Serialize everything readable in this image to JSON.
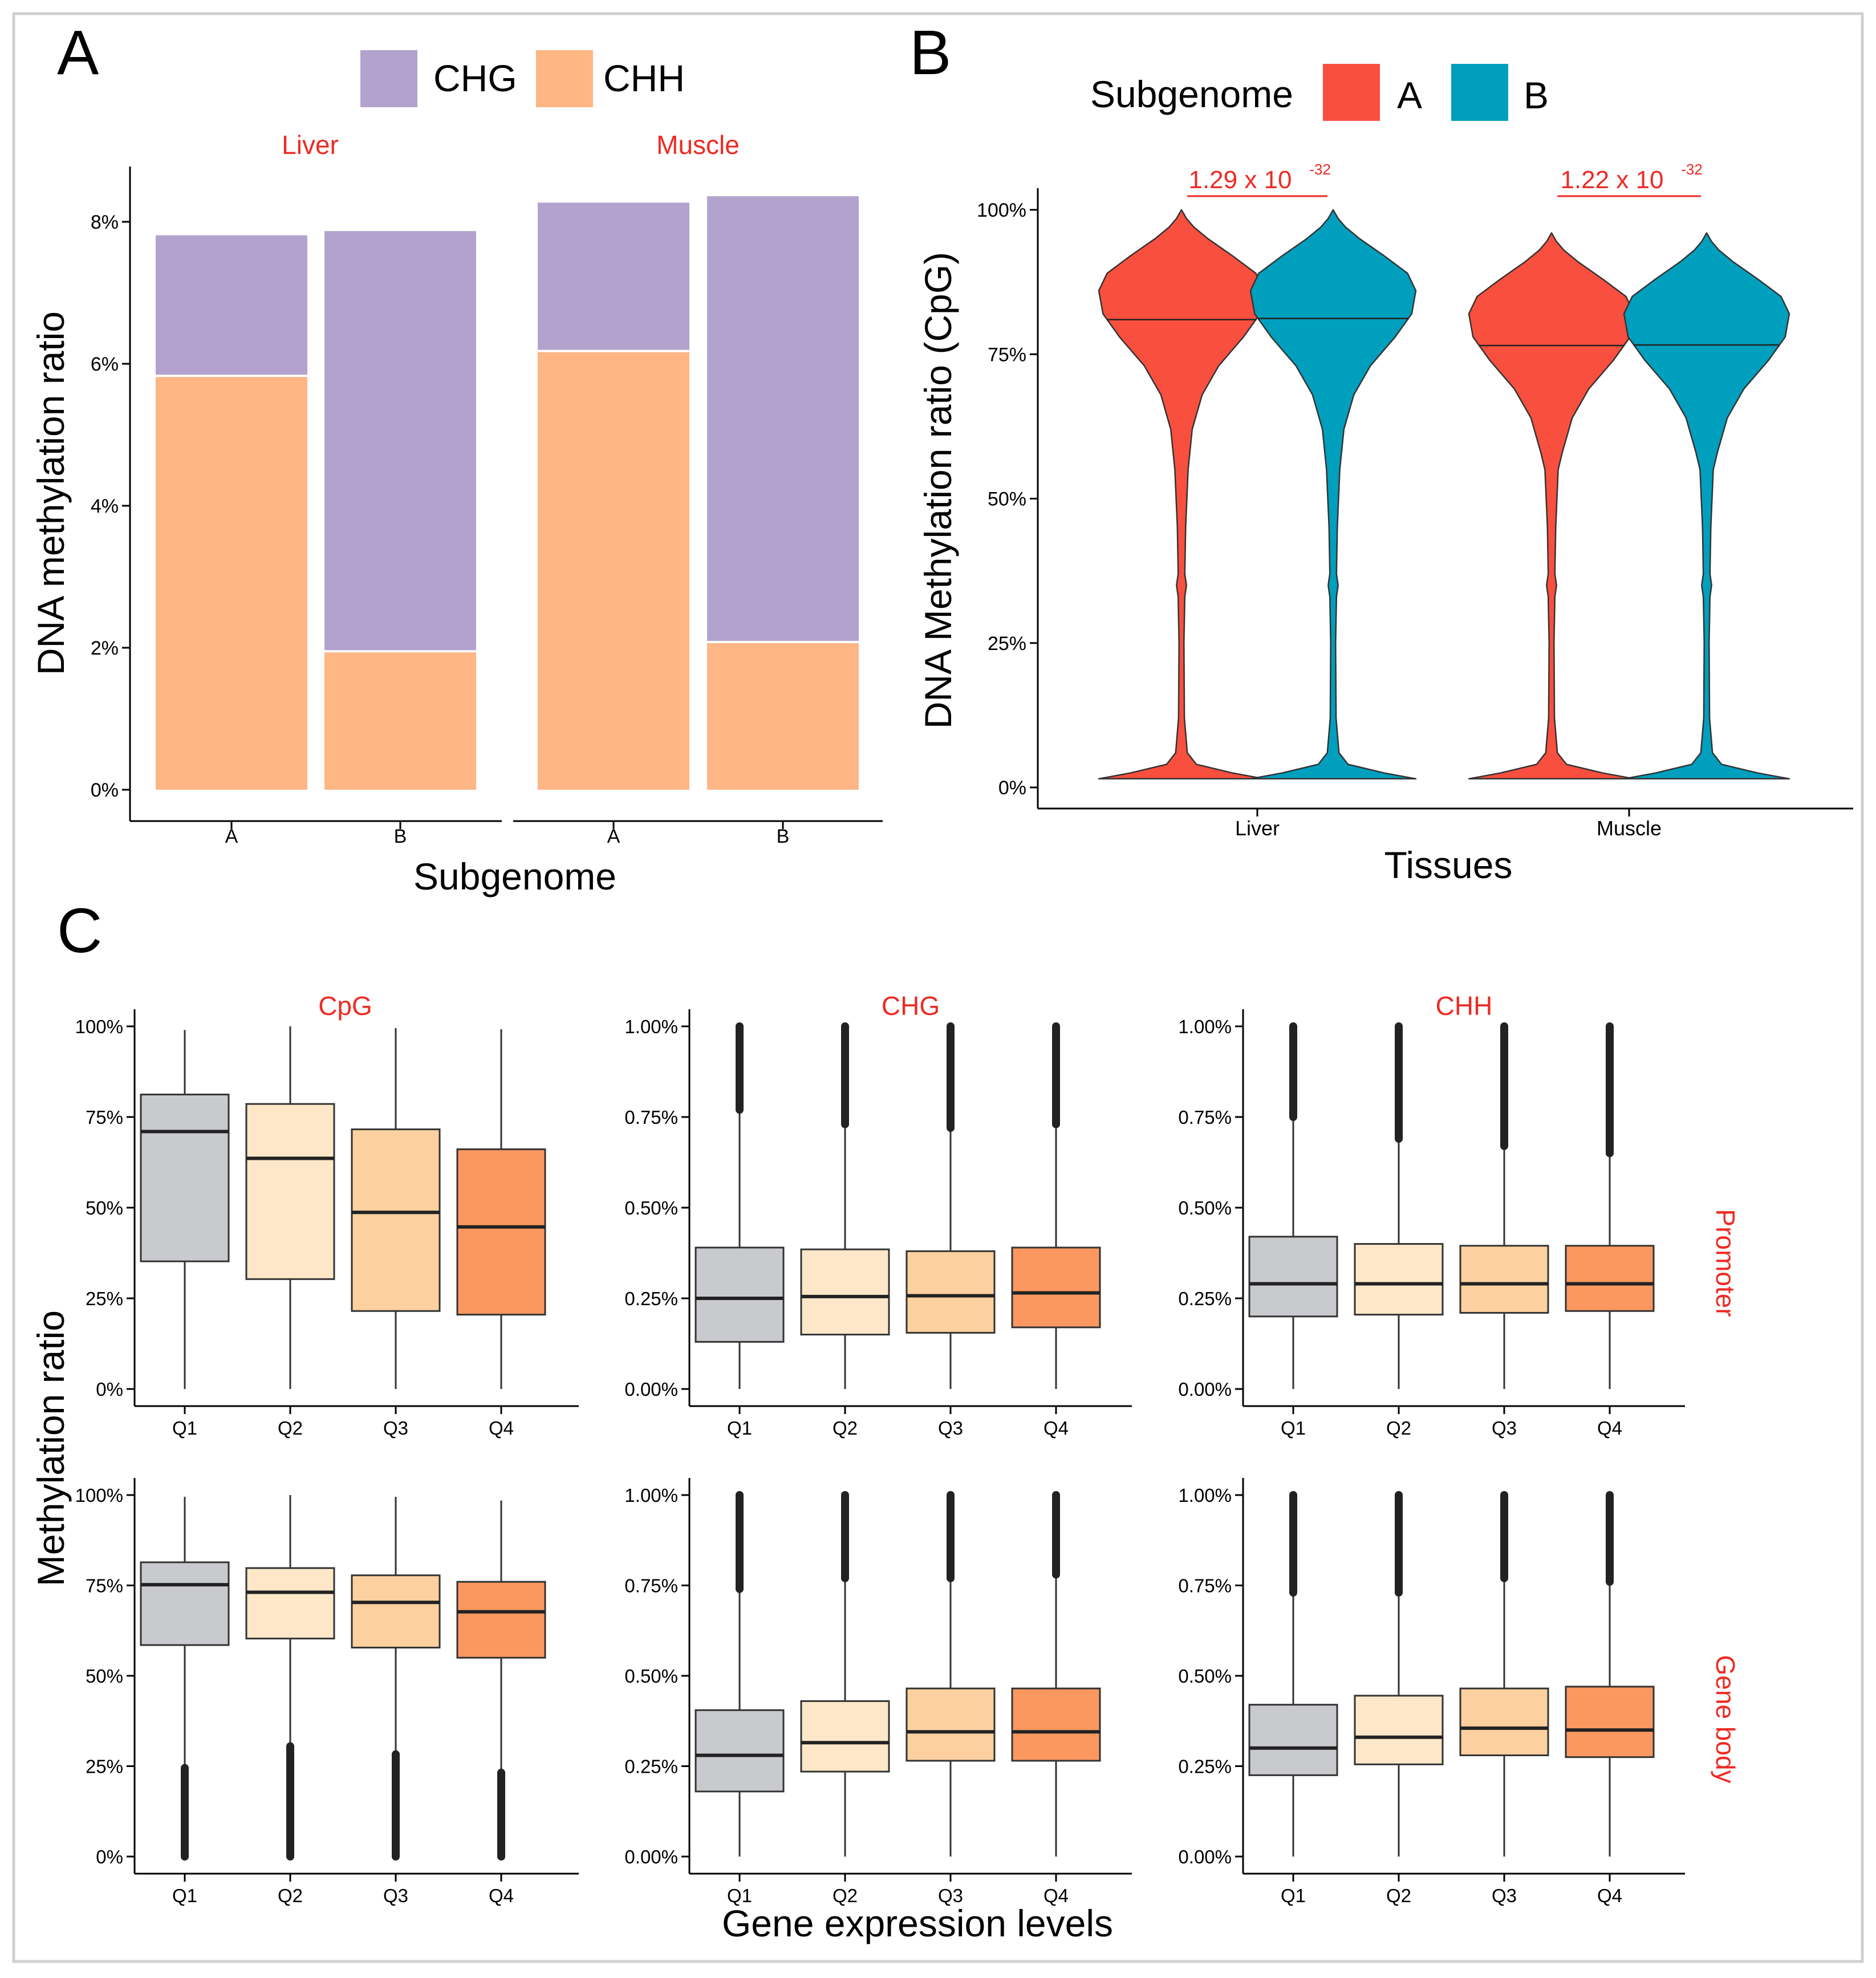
{
  "panels": {
    "a": "A",
    "b": "B",
    "c": "C"
  },
  "colors": {
    "chg": "#b3a2cd",
    "chh": "#fdb684",
    "sub_a": "#f94f3f",
    "sub_b": "#009fbd",
    "facet_title": "#ee2a24",
    "q1": "#c8cacd",
    "q2": "#fde7c8",
    "q3": "#fcd19f",
    "q4": "#fb985f",
    "outline": "#333333",
    "axis": "#000000"
  },
  "chart_data": [
    {
      "id": "A",
      "type": "bar",
      "stacked": true,
      "legend": [
        "CHG",
        "CHH"
      ],
      "legend_position": "top",
      "xlabel": "Subgenome",
      "ylabel": "DNA methylation ratio",
      "ylim": [
        0,
        8.8
      ],
      "yticks": [
        "0%",
        "2%",
        "4%",
        "6%",
        "8%"
      ],
      "facets": [
        {
          "title": "Liver",
          "categories": [
            "A",
            "B"
          ],
          "series": [
            {
              "name": "CHH",
              "values": [
                5.83,
                1.95
              ]
            },
            {
              "name": "CHG",
              "values": [
                1.98,
                5.92
              ]
            }
          ]
        },
        {
          "title": "Muscle",
          "categories": [
            "A",
            "B"
          ],
          "series": [
            {
              "name": "CHH",
              "values": [
                6.18,
                2.08
              ]
            },
            {
              "name": "CHG",
              "values": [
                2.09,
                6.28
              ]
            }
          ]
        }
      ]
    },
    {
      "id": "B",
      "type": "violin",
      "legend_title": "Subgenome",
      "legend": [
        "A",
        "B"
      ],
      "legend_position": "top",
      "xlabel": "Tissues",
      "ylabel": "DNA Methylation ratio (CpG)",
      "ylim": [
        0,
        100
      ],
      "yticks": [
        "0%",
        "25%",
        "50%",
        "75%",
        "100%"
      ],
      "categories": [
        "Liver",
        "Muscle"
      ],
      "medians": {
        "Liver": {
          "A": 81.0,
          "B": 81.2
        },
        "Muscle": {
          "A": 76.5,
          "B": 76.6
        }
      },
      "annotations": [
        {
          "group": "Liver",
          "base": "1.29 x 10",
          "exponent": "-32"
        },
        {
          "group": "Muscle",
          "base": "1.22 x 10",
          "exponent": "-32"
        }
      ]
    },
    {
      "id": "C",
      "type": "boxplot",
      "xlabel": "Gene expression levels",
      "ylabel": "Methylation ratio",
      "categories": [
        "Q1",
        "Q2",
        "Q3",
        "Q4"
      ],
      "columns": [
        "CpG",
        "CHG",
        "CHH"
      ],
      "rows": [
        "Promoter",
        "Gene body"
      ],
      "yticks": {
        "CpG": [
          "0%",
          "25%",
          "50%",
          "75%",
          "100%"
        ],
        "CHG": [
          "0.00%",
          "0.25%",
          "0.50%",
          "0.75%",
          "1.00%"
        ],
        "CHH": [
          "0.00%",
          "0.25%",
          "0.50%",
          "0.75%",
          "1.00%"
        ]
      },
      "ymax": {
        "CpG": 100,
        "CHG": 1.0,
        "CHH": 1.0
      },
      "panels": [
        {
          "row": "Promoter",
          "col": "CpG",
          "boxes": [
            {
              "q1": 35.2,
              "median": 71.0,
              "q3": 81.2,
              "wlo": 0.0,
              "whi": 99.0
            },
            {
              "q1": 30.3,
              "median": 63.6,
              "q3": 78.6,
              "wlo": 0.0,
              "whi": 100.0
            },
            {
              "q1": 21.5,
              "median": 48.7,
              "q3": 71.6,
              "wlo": 0.0,
              "whi": 99.5
            },
            {
              "q1": 20.5,
              "median": 44.7,
              "q3": 66.1,
              "wlo": 0.0,
              "whi": 99.2
            }
          ]
        },
        {
          "row": "Promoter",
          "col": "CHG",
          "boxes": [
            {
              "q1": 0.13,
              "median": 0.25,
              "q3": 0.39,
              "wlo": 0.0,
              "whi": 0.77,
              "out_lo": 0.77,
              "out_hi": 1.0
            },
            {
              "q1": 0.15,
              "median": 0.255,
              "q3": 0.385,
              "wlo": 0.0,
              "whi": 0.73,
              "out_lo": 0.73,
              "out_hi": 1.0
            },
            {
              "q1": 0.155,
              "median": 0.257,
              "q3": 0.38,
              "wlo": 0.0,
              "whi": 0.72,
              "out_lo": 0.72,
              "out_hi": 1.0
            },
            {
              "q1": 0.17,
              "median": 0.265,
              "q3": 0.39,
              "wlo": 0.0,
              "whi": 0.73,
              "out_lo": 0.73,
              "out_hi": 1.0
            }
          ]
        },
        {
          "row": "Promoter",
          "col": "CHH",
          "boxes": [
            {
              "q1": 0.2,
              "median": 0.29,
              "q3": 0.42,
              "wlo": 0.0,
              "whi": 0.75,
              "out_lo": 0.75,
              "out_hi": 1.0
            },
            {
              "q1": 0.205,
              "median": 0.29,
              "q3": 0.4,
              "wlo": 0.0,
              "whi": 0.69,
              "out_lo": 0.69,
              "out_hi": 1.0
            },
            {
              "q1": 0.21,
              "median": 0.29,
              "q3": 0.395,
              "wlo": 0.0,
              "whi": 0.67,
              "out_lo": 0.67,
              "out_hi": 1.0
            },
            {
              "q1": 0.215,
              "median": 0.29,
              "q3": 0.395,
              "wlo": 0.0,
              "whi": 0.65,
              "out_lo": 0.65,
              "out_hi": 1.0
            }
          ]
        },
        {
          "row": "Gene body",
          "col": "CpG",
          "boxes": [
            {
              "q1": 58.5,
              "median": 75.2,
              "q3": 81.4,
              "wlo": 24.5,
              "whi": 99.5,
              "out_lo": 0.0,
              "out_hi": 24.5
            },
            {
              "q1": 60.3,
              "median": 73.1,
              "q3": 79.8,
              "wlo": 30.5,
              "whi": 100.0,
              "out_lo": 0.0,
              "out_hi": 30.5
            },
            {
              "q1": 57.8,
              "median": 70.3,
              "q3": 77.8,
              "wlo": 28.3,
              "whi": 99.5,
              "out_lo": 0.0,
              "out_hi": 28.3
            },
            {
              "q1": 55.0,
              "median": 67.7,
              "q3": 76.0,
              "wlo": 23.2,
              "whi": 98.5,
              "out_lo": 0.0,
              "out_hi": 23.2
            }
          ]
        },
        {
          "row": "Gene body",
          "col": "CHG",
          "boxes": [
            {
              "q1": 0.18,
              "median": 0.28,
              "q3": 0.405,
              "wlo": 0.0,
              "whi": 0.74,
              "out_lo": 0.74,
              "out_hi": 1.0
            },
            {
              "q1": 0.235,
              "median": 0.315,
              "q3": 0.43,
              "wlo": 0.0,
              "whi": 0.77,
              "out_lo": 0.77,
              "out_hi": 1.0
            },
            {
              "q1": 0.265,
              "median": 0.345,
              "q3": 0.465,
              "wlo": 0.0,
              "whi": 0.77,
              "out_lo": 0.77,
              "out_hi": 1.0
            },
            {
              "q1": 0.265,
              "median": 0.345,
              "q3": 0.465,
              "wlo": 0.0,
              "whi": 0.78,
              "out_lo": 0.78,
              "out_hi": 1.0
            }
          ]
        },
        {
          "row": "Gene body",
          "col": "CHH",
          "boxes": [
            {
              "q1": 0.225,
              "median": 0.3,
              "q3": 0.42,
              "wlo": 0.0,
              "whi": 0.73,
              "out_lo": 0.73,
              "out_hi": 1.0
            },
            {
              "q1": 0.255,
              "median": 0.33,
              "q3": 0.445,
              "wlo": 0.0,
              "whi": 0.73,
              "out_lo": 0.73,
              "out_hi": 1.0
            },
            {
              "q1": 0.28,
              "median": 0.355,
              "q3": 0.465,
              "wlo": 0.0,
              "whi": 0.77,
              "out_lo": 0.77,
              "out_hi": 1.0
            },
            {
              "q1": 0.275,
              "median": 0.35,
              "q3": 0.47,
              "wlo": 0.0,
              "whi": 0.76,
              "out_lo": 0.76,
              "out_hi": 1.0
            }
          ]
        }
      ]
    }
  ]
}
